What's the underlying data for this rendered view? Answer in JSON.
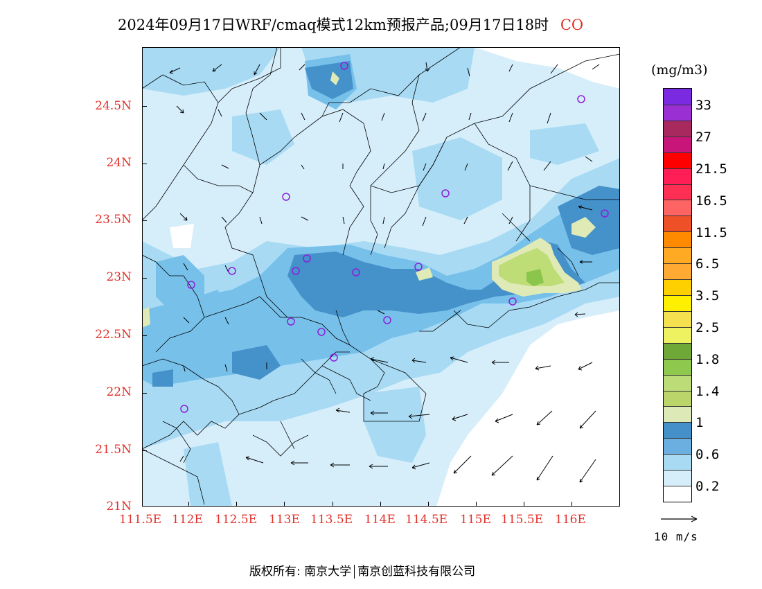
{
  "title": {
    "main": "2024年09月17日WRF/cmaq模式12km预报产品;09月17日18时",
    "species": "CO"
  },
  "map": {
    "lat_labels": [
      "24.5N",
      "24N",
      "23.5N",
      "23N",
      "22.5N",
      "22N",
      "21.5N",
      "21N"
    ],
    "lon_labels": [
      "111.5E",
      "112E",
      "112.5E",
      "113E",
      "113.5E",
      "114E",
      "114.5E",
      "115E",
      "115.5E",
      "116E"
    ],
    "colors": {
      "c02": "#d6eefa",
      "c06": "#a8daf4",
      "c06b": "#76c0ea",
      "c1": "#4591ca",
      "cyellow": "#dfeab6",
      "cgreen": "#bedd77",
      "cdkgreen": "#8bc54c"
    },
    "stations_icon": "purple-circle"
  },
  "legend": {
    "unit": "(mg/m3)",
    "labels": [
      "33",
      "27",
      "21.5",
      "16.5",
      "11.5",
      "6.5",
      "3.5",
      "2.5",
      "1.8",
      "1.4",
      "1",
      "0.6",
      "0.2"
    ],
    "colors": [
      "#7a2be2",
      "#9a30d4",
      "#a8295e",
      "#c8157a",
      "#ff0000",
      "#ff1e55",
      "#ff2f54",
      "#ff6464",
      "#ee5028",
      "#ff8a00",
      "#ffaa22",
      "#ffaa33",
      "#ffd000",
      "#fff000",
      "#f5e050",
      "#eef260",
      "#70a838",
      "#8ec84c",
      "#bcdc78",
      "#bbd56a",
      "#dde9b6",
      "#4590c8",
      "#6aafe0",
      "#a8daf4",
      "#d6eefa",
      "#ffffff"
    ]
  },
  "reference_vector": "10 m/s",
  "copyright": {
    "prefix": "版权所有: 南京大学",
    "company": "南京创蓝科技有限公司"
  }
}
